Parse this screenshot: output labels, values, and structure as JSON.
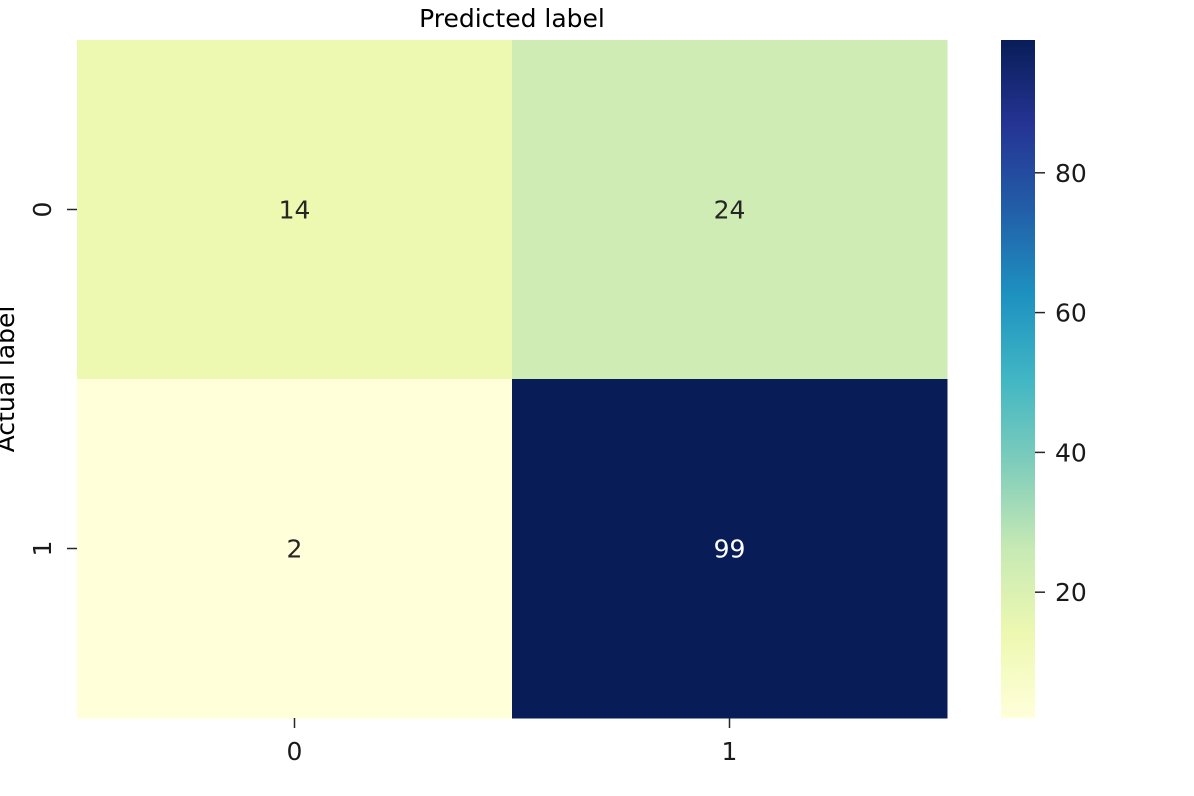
{
  "chart_data": {
    "type": "heatmap",
    "title": "Predicted label",
    "ylabel": "Actual label",
    "xlabel": "",
    "x_categories": [
      "0",
      "1"
    ],
    "y_categories": [
      "0",
      "1"
    ],
    "values": [
      [
        14,
        24
      ],
      [
        2,
        99
      ]
    ],
    "colormap": "YlGnBu",
    "colorbar": {
      "range": [
        2,
        99
      ],
      "ticks": [
        20,
        40,
        60,
        80
      ]
    }
  }
}
